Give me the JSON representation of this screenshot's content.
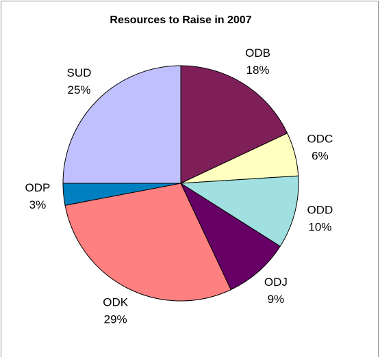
{
  "chart_data": {
    "type": "pie",
    "title": "Resources to Raise in 2007",
    "categories": [
      "ODB",
      "ODC",
      "ODD",
      "ODJ",
      "ODK",
      "ODP",
      "SUD"
    ],
    "values": [
      18,
      6,
      10,
      9,
      29,
      3,
      25
    ],
    "value_labels": [
      "18%",
      "6%",
      "10%",
      "9%",
      "29%",
      "3%",
      "25%"
    ],
    "colors": [
      "#7f1f5a",
      "#ffffc0",
      "#a0e0e0",
      "#660066",
      "#ff8080",
      "#0080c0",
      "#c0c0ff"
    ]
  }
}
